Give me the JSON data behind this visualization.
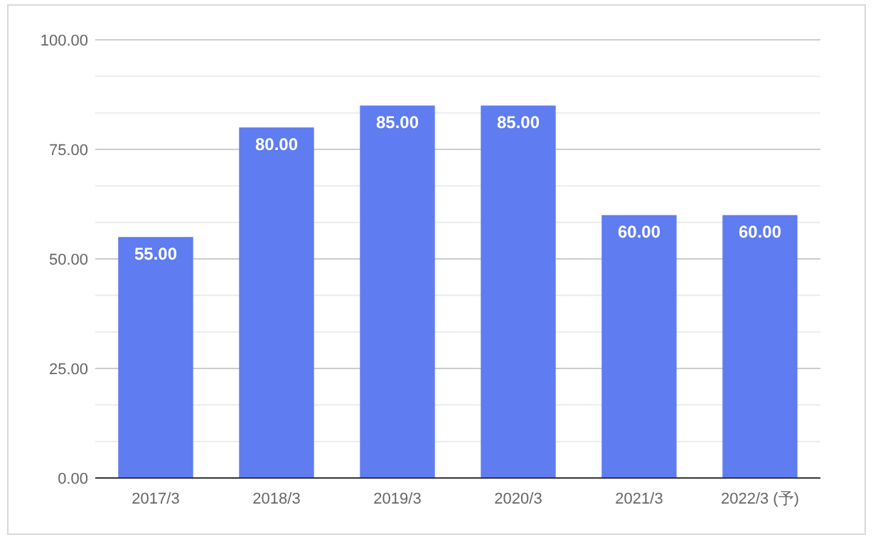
{
  "chart_data": {
    "type": "bar",
    "categories": [
      "2017/3",
      "2018/3",
      "2019/3",
      "2020/3",
      "2021/3",
      "2022/3 (予)"
    ],
    "values": [
      55,
      80,
      85,
      85,
      60,
      60
    ],
    "value_labels": [
      "55.00",
      "80.00",
      "85.00",
      "85.00",
      "60.00",
      "60.00"
    ],
    "color": "#5f7cf0",
    "ylim": [
      0,
      100
    ],
    "yticks": [
      {
        "value": 0,
        "label": "0.00"
      },
      {
        "value": 8.33,
        "label": null
      },
      {
        "value": 16.67,
        "label": null
      },
      {
        "value": 25,
        "label": "25.00"
      },
      {
        "value": 33.33,
        "label": null
      },
      {
        "value": 41.67,
        "label": null
      },
      {
        "value": 50,
        "label": "50.00"
      },
      {
        "value": 58.33,
        "label": null
      },
      {
        "value": 66.67,
        "label": null
      },
      {
        "value": 75,
        "label": "75.00"
      },
      {
        "value": 83.33,
        "label": null
      },
      {
        "value": 91.67,
        "label": null
      },
      {
        "value": 100,
        "label": "100.00"
      }
    ],
    "grid": "y"
  }
}
